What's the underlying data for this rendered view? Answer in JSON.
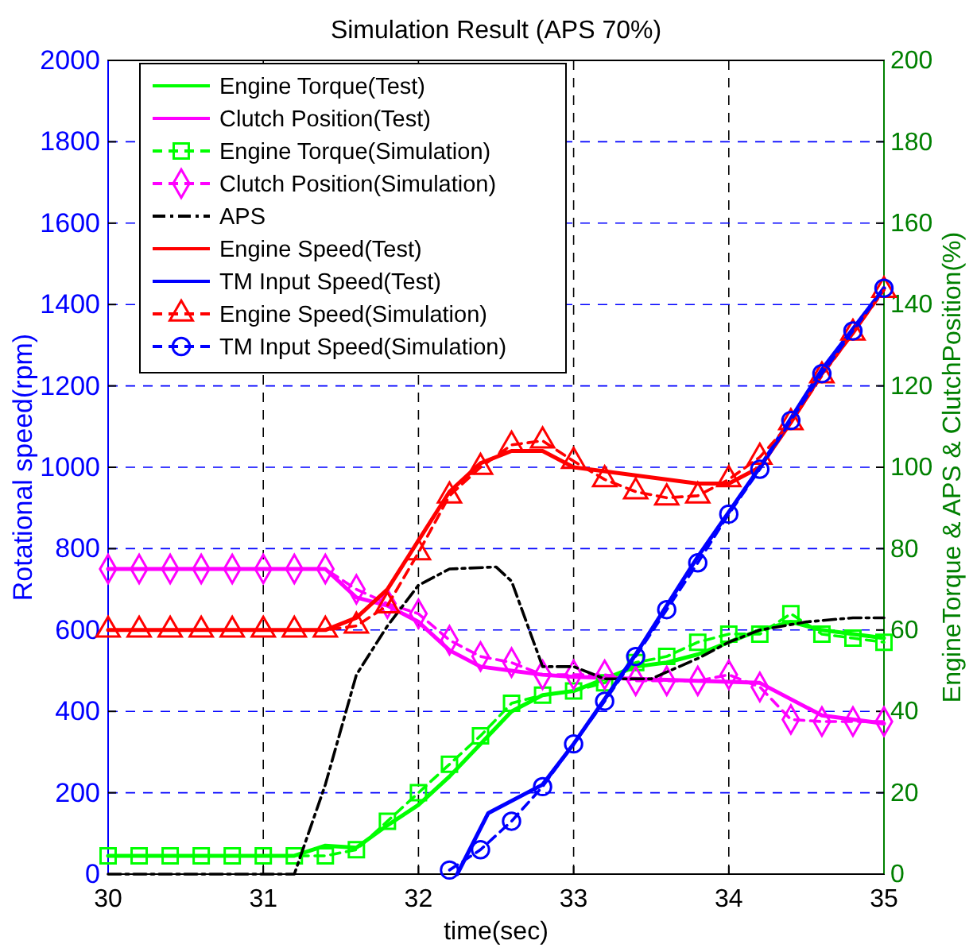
{
  "chart_data": {
    "type": "line",
    "title": "Simulation Result (APS 70%)",
    "xlabel": "time(sec)",
    "ylabel": "Rotational speed(rpm)",
    "y2label": "EngineTorque & APS & ClutchPosition(%)",
    "xlim": [
      30,
      35
    ],
    "xticks": [
      30,
      31,
      32,
      33,
      34,
      35
    ],
    "ylim": [
      0,
      2000
    ],
    "yticks": [
      0,
      200,
      400,
      600,
      800,
      1000,
      1200,
      1400,
      1600,
      1800,
      2000
    ],
    "y2lim": [
      0,
      200
    ],
    "y2ticks": [
      0,
      20,
      40,
      60,
      80,
      100,
      120,
      140,
      160,
      180,
      200
    ],
    "grid": true,
    "legend": "top left",
    "series": [
      {
        "name": "Engine Torque(Test)",
        "color": "#00ff00",
        "axis": "y2",
        "marker": "none",
        "line_style": "solid",
        "x": [
          30,
          31.2,
          31.4,
          31.6,
          31.8,
          32,
          32.2,
          32.4,
          32.6,
          32.8,
          33,
          33.2,
          33.4,
          33.6,
          33.8,
          34,
          34.2,
          34.4,
          34.6,
          35
        ],
        "values": [
          4.5,
          4.5,
          7,
          6.5,
          12,
          17,
          24,
          32,
          40,
          44,
          45,
          48,
          51,
          52,
          54,
          57,
          60,
          62,
          60,
          58
        ]
      },
      {
        "name": "Clutch Position(Test)",
        "color": "#ff00ff",
        "axis": "y2",
        "marker": "none",
        "line_style": "solid",
        "x": [
          30,
          31.4,
          31.6,
          31.8,
          32,
          32.2,
          32.4,
          32.6,
          32.8,
          33,
          33.4,
          34.2,
          34.6,
          35
        ],
        "values": [
          75,
          75,
          68,
          66,
          62,
          55,
          51,
          50,
          49,
          48.5,
          48,
          47,
          39,
          37
        ]
      },
      {
        "name": "Engine Torque(Simulation)",
        "color": "#00ff00",
        "axis": "y2",
        "marker": "square",
        "line_style": "dashed",
        "x": [
          30,
          30.2,
          30.4,
          30.6,
          30.8,
          31,
          31.2,
          31.4,
          31.6,
          31.8,
          32,
          32.2,
          32.4,
          32.6,
          32.8,
          33,
          33.2,
          33.4,
          33.6,
          33.8,
          34,
          34.2,
          34.4,
          34.6,
          34.8,
          35
        ],
        "values": [
          4.5,
          4.5,
          4.5,
          4.5,
          4.5,
          4.5,
          4.5,
          4.5,
          6,
          13,
          20,
          27,
          34,
          42,
          44,
          45,
          47,
          52,
          53.5,
          57,
          59,
          59,
          64,
          59,
          58,
          57
        ]
      },
      {
        "name": "Clutch Position(Simulation)",
        "color": "#ff00ff",
        "axis": "y2",
        "marker": "diamond",
        "line_style": "dashed",
        "x": [
          30,
          30.2,
          30.4,
          30.6,
          30.8,
          31,
          31.2,
          31.4,
          31.6,
          31.8,
          32,
          32.2,
          32.4,
          32.6,
          32.8,
          33,
          33.2,
          33.4,
          33.6,
          33.8,
          34,
          34.2,
          34.4,
          34.6,
          34.8,
          35
        ],
        "values": [
          75,
          75,
          75,
          75,
          75,
          75,
          75,
          75,
          70,
          66.5,
          64,
          57.5,
          53.5,
          52,
          49,
          49,
          49,
          47.5,
          47.5,
          47.5,
          49,
          46,
          38,
          37.5,
          37.5,
          37.5
        ]
      },
      {
        "name": "APS",
        "color": "#000000",
        "axis": "y2",
        "marker": "none",
        "line_style": "dashdot",
        "x": [
          30,
          31.2,
          31.4,
          31.6,
          31.8,
          32,
          32.2,
          32.5,
          32.6,
          32.8,
          33,
          33.2,
          33.5,
          33.8,
          34,
          34.2,
          34.5,
          34.8,
          35
        ],
        "values": [
          0,
          0,
          22,
          49,
          61,
          71,
          75,
          75.5,
          72,
          51,
          51,
          48,
          48,
          53,
          57,
          60,
          62,
          63,
          63
        ]
      },
      {
        "name": "Engine Speed(Test)",
        "color": "#ff0000",
        "marker": "none",
        "line_style": "solid",
        "x": [
          30,
          31.4,
          31.6,
          31.8,
          32,
          32.2,
          32.4,
          32.6,
          32.8,
          33,
          33.4,
          33.8,
          34,
          34.2,
          34.4,
          34.6,
          34.8,
          35
        ],
        "values": [
          600,
          600,
          630,
          700,
          820,
          940,
          1010,
          1040,
          1040,
          1000,
          980,
          960,
          960,
          1000,
          1110,
          1230,
          1330,
          1440
        ]
      },
      {
        "name": "TM Input Speed(Test)",
        "color": "#0000ff",
        "marker": "none",
        "line_style": "solid",
        "x": [
          32.25,
          32.45,
          32.8,
          33,
          33.4,
          33.8,
          34,
          34.2,
          34.6,
          35
        ],
        "values": [
          0,
          150,
          220,
          320,
          540,
          780,
          890,
          1000,
          1240,
          1440
        ]
      },
      {
        "name": "Engine Speed(Simulation)",
        "color": "#ff0000",
        "marker": "triangle",
        "line_style": "dashed",
        "x": [
          30,
          30.2,
          30.4,
          30.6,
          30.8,
          31,
          31.2,
          31.4,
          31.6,
          31.8,
          32,
          32.2,
          32.4,
          32.6,
          32.8,
          33,
          33.2,
          33.4,
          33.6,
          33.8,
          34,
          34.2,
          34.4,
          34.6,
          34.8,
          35
        ],
        "values": [
          600,
          600,
          600,
          600,
          600,
          600,
          600,
          600,
          610,
          660,
          790,
          930,
          1000,
          1055,
          1065,
          1015,
          970,
          940,
          925,
          930,
          970,
          1025,
          1110,
          1225,
          1330,
          1435
        ]
      },
      {
        "name": "TM Input Speed(Simulation)",
        "color": "#0000ff",
        "marker": "circle",
        "line_style": "dashed",
        "x": [
          32.2,
          32.4,
          32.6,
          32.8,
          33,
          33.2,
          33.4,
          33.6,
          33.8,
          34,
          34.2,
          34.4,
          34.6,
          34.8,
          35
        ],
        "values": [
          10,
          60,
          130,
          215,
          320,
          425,
          535,
          650,
          765,
          885,
          995,
          1115,
          1230,
          1335,
          1440
        ]
      }
    ]
  }
}
